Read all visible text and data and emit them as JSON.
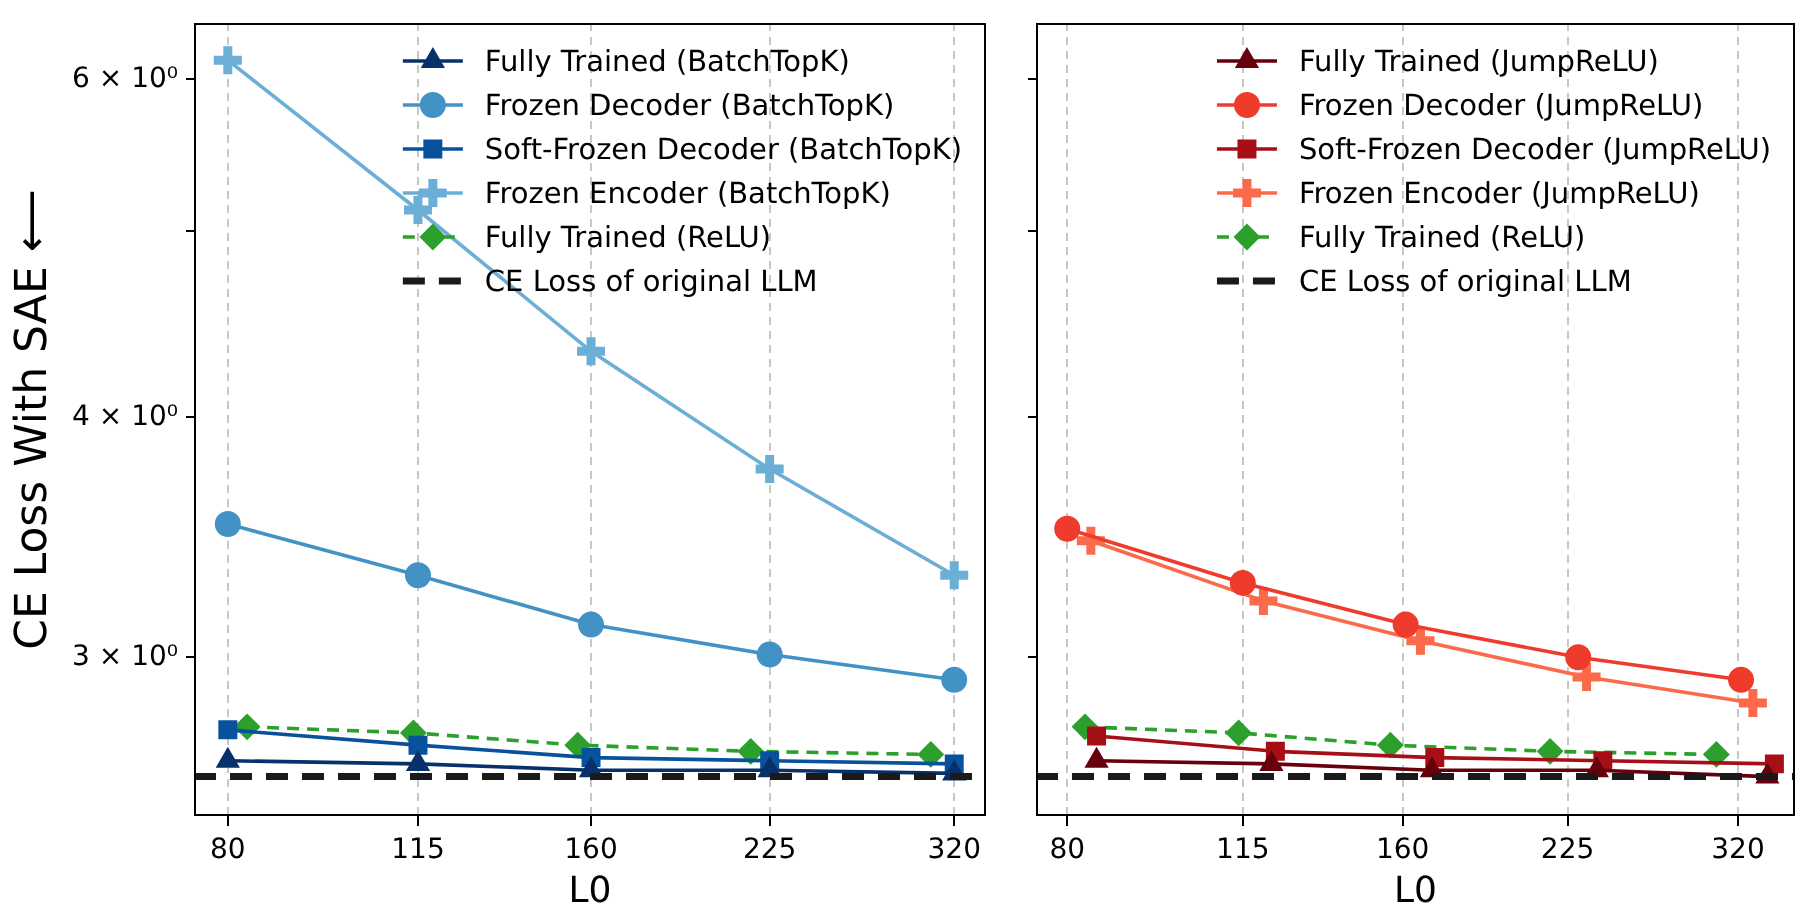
{
  "chart_data": [
    {
      "type": "line",
      "xlabel": "L0",
      "ylabel": "CE Loss With SAE ⟵",
      "log": "xy",
      "xlim": [
        75,
        340
      ],
      "ylim": [
        2.48,
        6.42
      ],
      "xticks": [
        80,
        115,
        160,
        225,
        320
      ],
      "yticks": [
        {
          "value": 3,
          "label": "3 × 10⁰"
        },
        {
          "value": 4,
          "label": "4 × 10⁰"
        },
        {
          "value": 5,
          "label": null
        },
        {
          "value": 6,
          "label": "6 × 10⁰"
        }
      ],
      "grid": "x",
      "legend": "top right",
      "series": [
        {
          "name": "Fully Trained (BatchTopK)",
          "color": "#08306b",
          "marker": "triangle",
          "line_style": "solid",
          "x": [
            80,
            115,
            160,
            225,
            320
          ],
          "values": [
            2.65,
            2.64,
            2.62,
            2.62,
            2.61
          ]
        },
        {
          "name": "Frozen Decoder (BatchTopK)",
          "color": "#4292c6",
          "marker": "circle",
          "line_style": "solid",
          "x": [
            80,
            115,
            160,
            225,
            320
          ],
          "values": [
            3.52,
            3.31,
            3.12,
            3.01,
            2.92
          ]
        },
        {
          "name": "Soft-Frozen Decoder (BatchTopK)",
          "color": "#08519c",
          "marker": "square",
          "line_style": "solid",
          "x": [
            80,
            115,
            160,
            225,
            320
          ],
          "values": [
            2.75,
            2.7,
            2.66,
            2.65,
            2.64
          ]
        },
        {
          "name": "Frozen Encoder (BatchTopK)",
          "color": "#6baed6",
          "marker": "cross",
          "line_style": "solid",
          "x": [
            80,
            115,
            160,
            225,
            320
          ],
          "values": [
            6.14,
            5.13,
            4.33,
            3.76,
            3.31
          ]
        },
        {
          "name": "Fully Trained (ReLU)",
          "color": "#2ca02c",
          "marker": "diamond",
          "line_style": "dashed",
          "x": [
            83,
            114,
            156,
            217,
            306
          ],
          "values": [
            2.76,
            2.74,
            2.7,
            2.68,
            2.67
          ]
        }
      ],
      "ref_lines": [
        {
          "axis": "y",
          "value": 2.6,
          "label": "CE Loss of original LLM",
          "color": "#1a1a1a",
          "line_style": "dashed"
        }
      ]
    },
    {
      "type": "line",
      "xlabel": "L0",
      "log": "xy",
      "xlim": [
        75,
        360
      ],
      "ylim": [
        2.48,
        6.42
      ],
      "xticks": [
        80,
        115,
        160,
        225,
        320
      ],
      "yticks": [
        {
          "value": 3,
          "label": null
        },
        {
          "value": 4,
          "label": null
        },
        {
          "value": 5,
          "label": null
        },
        {
          "value": 6,
          "label": null
        }
      ],
      "tick_labels": "x",
      "grid": "x",
      "legend": "top right",
      "series": [
        {
          "name": "Fully Trained (JumpReLU)",
          "color": "#67000d",
          "marker": "triangle",
          "line_style": "solid",
          "x": [
            85,
            122,
            170,
            239,
            340
          ],
          "values": [
            2.65,
            2.64,
            2.62,
            2.62,
            2.6
          ]
        },
        {
          "name": "Frozen Decoder (JumpReLU)",
          "color": "#ef3b2c",
          "marker": "circle",
          "line_style": "solid",
          "x": [
            80,
            115,
            161,
            230,
            322
          ],
          "values": [
            3.5,
            3.28,
            3.12,
            3.0,
            2.92
          ]
        },
        {
          "name": "Soft-Frozen Decoder (JumpReLU)",
          "color": "#a50f15",
          "marker": "square",
          "line_style": "solid",
          "x": [
            85,
            123,
            171,
            242,
            345
          ],
          "values": [
            2.73,
            2.68,
            2.66,
            2.65,
            2.64
          ]
        },
        {
          "name": "Frozen Encoder (JumpReLU)",
          "color": "#fb6a4a",
          "marker": "cross",
          "line_style": "solid",
          "x": [
            84,
            120,
            166,
            234,
            330
          ],
          "values": [
            3.45,
            3.21,
            3.06,
            2.93,
            2.84
          ]
        },
        {
          "name": "Fully Trained (ReLU)",
          "color": "#2ca02c",
          "marker": "diamond",
          "line_style": "dashed",
          "x": [
            83,
            114,
            156,
            217,
            306
          ],
          "values": [
            2.76,
            2.74,
            2.7,
            2.68,
            2.67
          ]
        }
      ],
      "ref_lines": [
        {
          "axis": "y",
          "value": 2.6,
          "label": "CE Loss of original LLM",
          "color": "#1a1a1a",
          "line_style": "dashed"
        }
      ]
    }
  ]
}
